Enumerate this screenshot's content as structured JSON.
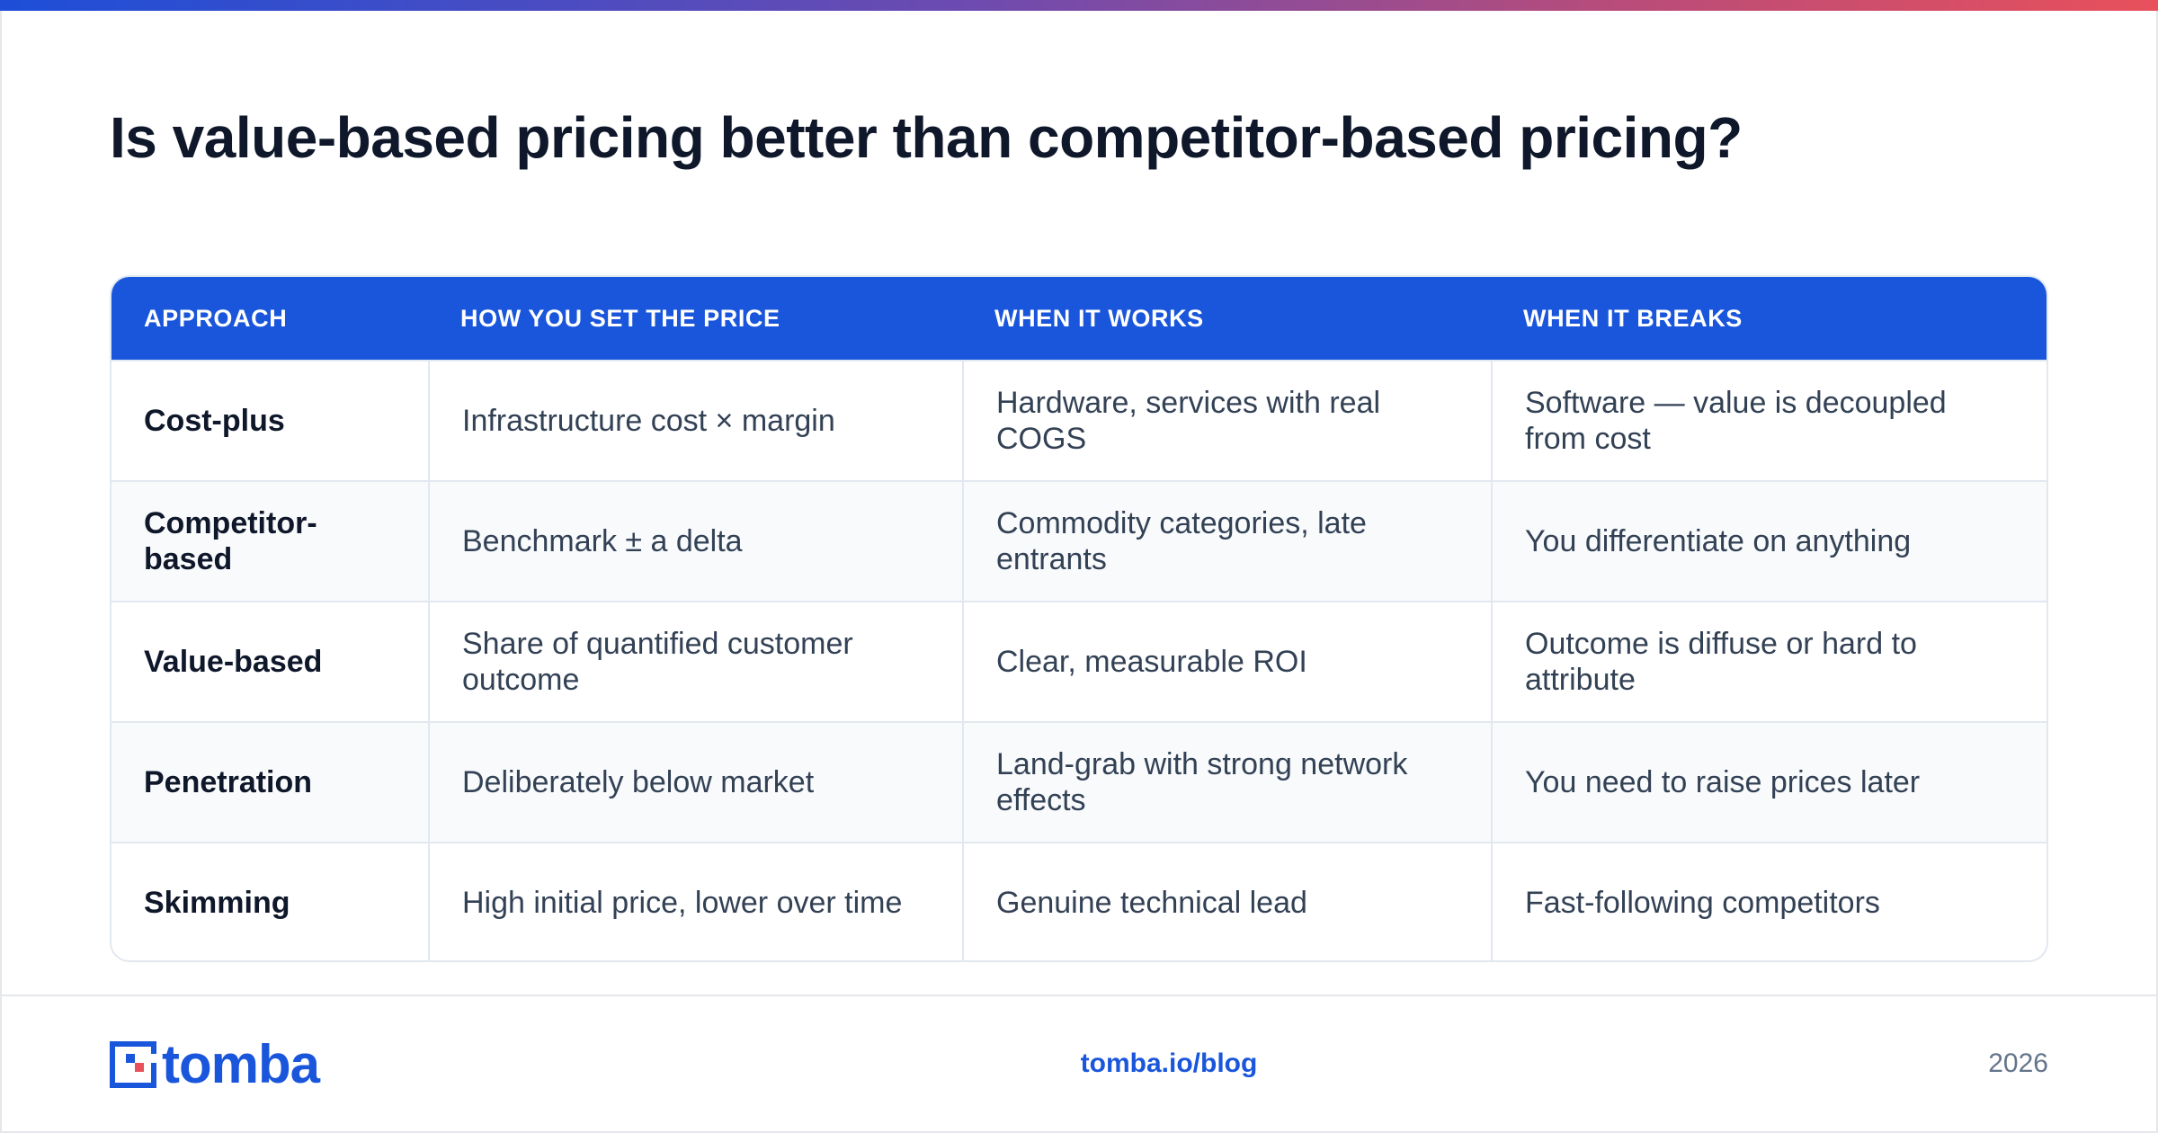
{
  "title": "Is value-based pricing better than competitor-based pricing?",
  "table": {
    "headers": [
      "APPROACH",
      "HOW YOU SET THE PRICE",
      "WHEN IT WORKS",
      "WHEN IT BREAKS"
    ],
    "rows": [
      [
        "Cost-plus",
        "Infrastructure cost × margin",
        "Hardware, services with real COGS",
        "Software — value is decoupled from cost"
      ],
      [
        "Competitor-based",
        "Benchmark ± a delta",
        "Commodity categories, late entrants",
        "You differentiate on anything"
      ],
      [
        "Value-based",
        "Share of quantified customer outcome",
        "Clear, measurable ROI",
        "Outcome is diffuse or hard to attribute"
      ],
      [
        "Penetration",
        "Deliberately below market",
        "Land-grab with strong network effects",
        "You need to raise prices later"
      ],
      [
        "Skimming",
        "High initial price, lower over time",
        "Genuine technical lead",
        "Fast-following competitors"
      ]
    ]
  },
  "footer": {
    "logo_text": "tomba",
    "link": "tomba.io/blog",
    "year": "2026"
  },
  "colors": {
    "accent": "#1a56db",
    "title": "#0f172a",
    "body_text": "#334155",
    "border": "#e2e8f0",
    "alt_row": "#f8fafc"
  },
  "icons": [
    "tomba-logo-icon"
  ]
}
